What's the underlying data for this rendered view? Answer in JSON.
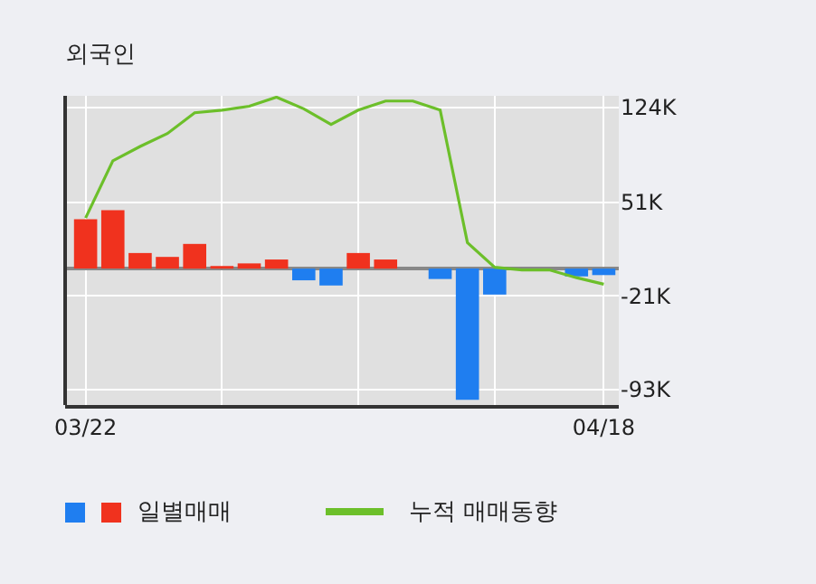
{
  "chart_data": {
    "type": "bar",
    "title": "외국인",
    "categories": [
      "03/22",
      null,
      null,
      null,
      null,
      null,
      null,
      null,
      null,
      null,
      null,
      null,
      null,
      null,
      null,
      null,
      null,
      null,
      null,
      "04/18"
    ],
    "series": [
      {
        "name": "일별매매",
        "colors": [
          "#f0321e",
          "#f0321e",
          "#f0321e",
          "#f0321e",
          "#f0321e",
          "#f0321e",
          "#f0321e",
          "#f0321e",
          "#1f7ef0",
          "#1f7ef0",
          "#f0321e",
          "#f0321e",
          "#f0321e",
          "#1f7ef0",
          "#1f7ef0",
          "#1f7ef0",
          "#1f7ef0",
          "#1f7ef0",
          "#1f7ef0",
          "#1f7ef0"
        ],
        "values": [
          38,
          45,
          12,
          9,
          19,
          2,
          4,
          7,
          -9,
          -13,
          12,
          7,
          0,
          -8,
          -101,
          -20,
          0,
          0,
          -6,
          -5
        ]
      },
      {
        "name": "누적 매매동향",
        "type": "line",
        "color": "#6cbf2a",
        "values": [
          39,
          83,
          94,
          104,
          120,
          122,
          125,
          132,
          123,
          111,
          122,
          129,
          129,
          122,
          20,
          1,
          -1,
          -1,
          -7,
          -12
        ]
      }
    ],
    "ylim": [
      -105,
      133
    ],
    "yticks": [
      {
        "value": 124,
        "label": "124K"
      },
      {
        "value": 51,
        "label": "51K"
      },
      {
        "value": -21,
        "label": "-21K"
      },
      {
        "value": -93,
        "label": "-93K"
      }
    ],
    "grid": true,
    "legend": "bottom",
    "marker": "none"
  }
}
